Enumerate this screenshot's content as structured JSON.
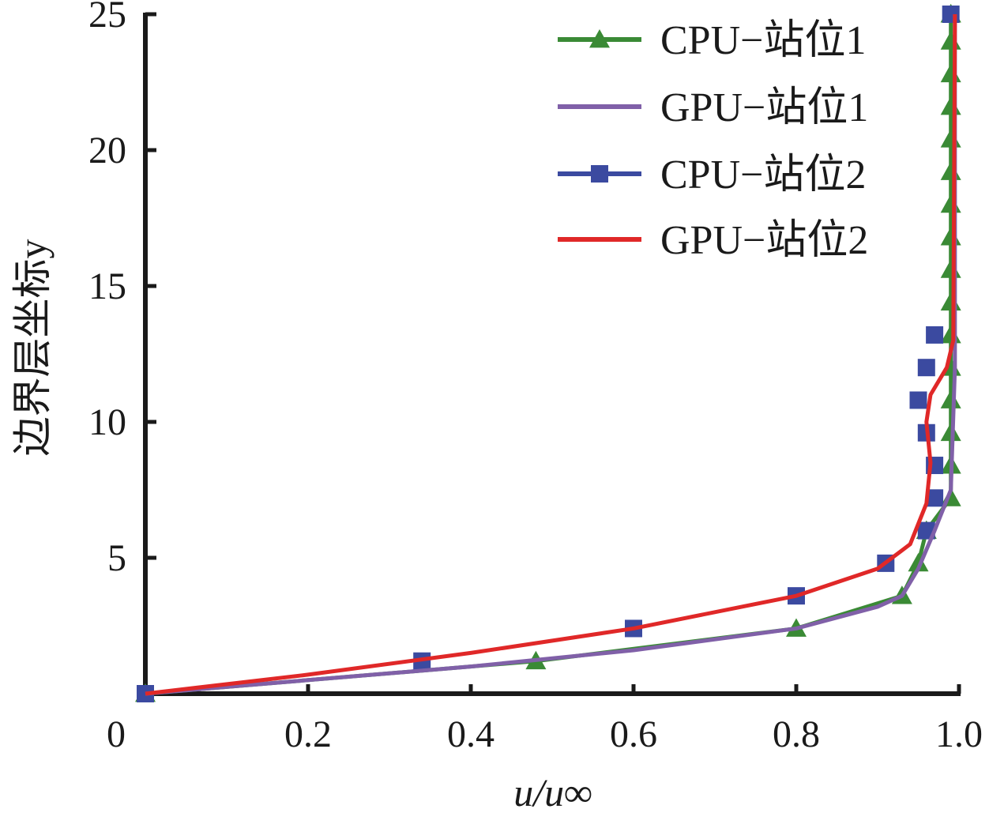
{
  "chart_data": {
    "type": "line",
    "xlabel": "u/u∞",
    "ylabel": "边界层坐标y",
    "xlim": [
      0,
      1.0
    ],
    "ylim": [
      0,
      25
    ],
    "x_ticks": [
      "0",
      "0.2",
      "0.4",
      "0.6",
      "0.8",
      "1.0"
    ],
    "x_tick_values": [
      0,
      0.2,
      0.4,
      0.6,
      0.8,
      1.0
    ],
    "y_ticks": [
      "5",
      "10",
      "15",
      "20",
      "25"
    ],
    "y_tick_values": [
      5,
      10,
      15,
      20,
      25
    ],
    "legend_position": "top-right",
    "grid": false,
    "series": [
      {
        "name": "CPU−站位1",
        "color": "#3a8a35",
        "marker": "triangle",
        "line": true,
        "x": [
          0.0,
          0.48,
          0.8,
          0.93,
          0.95,
          0.96,
          0.99,
          0.99,
          0.99,
          0.99,
          0.99,
          0.99,
          0.99,
          0.99,
          0.99,
          0.99,
          0.99,
          0.99,
          0.99,
          0.99,
          0.99,
          0.99,
          0.99
        ],
        "y": [
          0.0,
          1.2,
          2.4,
          3.6,
          4.8,
          6.0,
          7.2,
          8.4,
          9.6,
          10.8,
          12.0,
          13.2,
          14.4,
          15.6,
          16.8,
          18.0,
          19.2,
          20.4,
          21.6,
          22.8,
          24.0,
          25.0,
          25.0
        ]
      },
      {
        "name": "GPU−站位1",
        "color": "#8060a8",
        "marker": "none",
        "line": true,
        "x": [
          0.0,
          0.2,
          0.4,
          0.6,
          0.8,
          0.9,
          0.93,
          0.95,
          0.97,
          0.99,
          0.995,
          0.995
        ],
        "y": [
          0.0,
          0.5,
          1.0,
          1.6,
          2.4,
          3.2,
          3.6,
          4.6,
          6.0,
          7.5,
          12.0,
          25.0
        ]
      },
      {
        "name": "CPU−站位2",
        "color": "#3b4aa0",
        "marker": "square",
        "line": false,
        "x": [
          0.0,
          0.34,
          0.6,
          0.8,
          0.91,
          0.96,
          0.97,
          0.97,
          0.96,
          0.95,
          0.96,
          0.97,
          0.99
        ],
        "y": [
          0.0,
          1.2,
          2.4,
          3.6,
          4.8,
          6.0,
          7.2,
          8.4,
          9.6,
          10.8,
          12.0,
          13.2,
          25.0
        ]
      },
      {
        "name": "GPU−站位2",
        "color": "#e02828",
        "marker": "none",
        "line": true,
        "x": [
          0.0,
          0.2,
          0.4,
          0.6,
          0.8,
          0.9,
          0.94,
          0.96,
          0.965,
          0.96,
          0.965,
          0.985,
          0.993,
          0.995
        ],
        "y": [
          0.0,
          0.7,
          1.5,
          2.4,
          3.6,
          4.6,
          5.5,
          7.0,
          8.5,
          10.0,
          11.0,
          12.0,
          13.0,
          25.0
        ]
      }
    ]
  }
}
